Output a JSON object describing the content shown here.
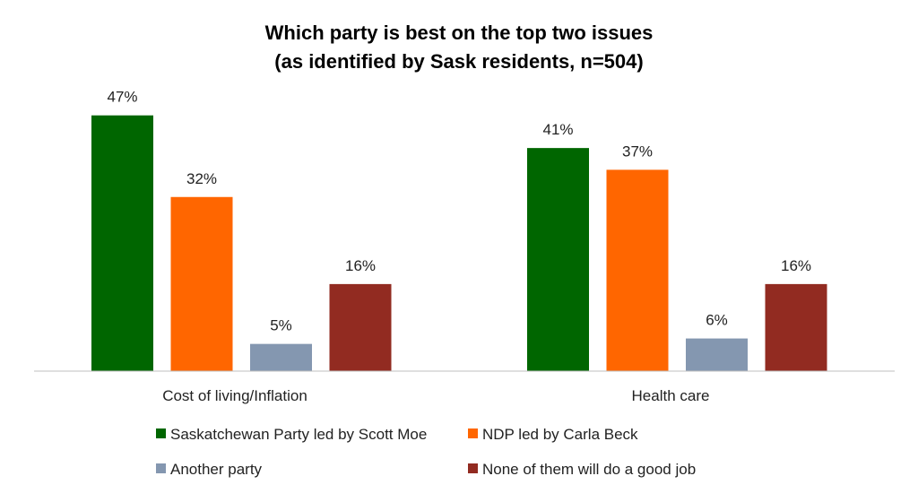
{
  "chart_data": {
    "type": "bar",
    "title": "Which party is best on the top two issues",
    "subtitle": "(as identified by Sask residents, n=504)",
    "categories": [
      "Cost of living/Inflation",
      "Health care"
    ],
    "series": [
      {
        "name": "Saskatchewan Party led by Scott Moe",
        "color": "#006600",
        "values": [
          47,
          41
        ],
        "labels": [
          "47%",
          "41%"
        ]
      },
      {
        "name": "NDP led by Carla Beck",
        "color": "#FF6600",
        "values": [
          32,
          37
        ],
        "labels": [
          "32%",
          "37%"
        ]
      },
      {
        "name": "Another party",
        "color": "#8497B0",
        "values": [
          5,
          6
        ],
        "labels": [
          "5%",
          "6%"
        ]
      },
      {
        "name": "None of them will do a good job",
        "color": "#922B21",
        "values": [
          16,
          16
        ],
        "labels": [
          "16%",
          "16%"
        ]
      }
    ],
    "ylim": [
      0,
      50
    ],
    "grid": false,
    "legend_position": "bottom"
  }
}
